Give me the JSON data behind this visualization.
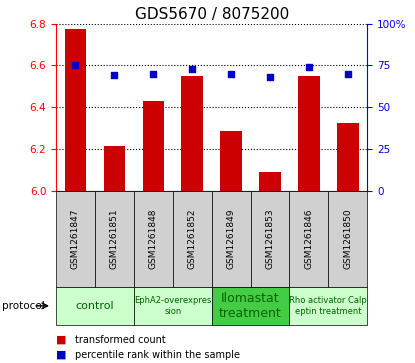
{
  "title": "GDS5670 / 8075200",
  "samples": [
    "GSM1261847",
    "GSM1261851",
    "GSM1261848",
    "GSM1261852",
    "GSM1261849",
    "GSM1261853",
    "GSM1261846",
    "GSM1261850"
  ],
  "bar_values": [
    6.775,
    6.215,
    6.43,
    6.55,
    6.285,
    6.09,
    6.55,
    6.325
  ],
  "percentile_values": [
    75,
    69,
    70,
    73,
    70,
    68,
    74,
    70
  ],
  "ylim_left": [
    6.0,
    6.8
  ],
  "ylim_right": [
    0,
    100
  ],
  "yticks_left": [
    6.0,
    6.2,
    6.4,
    6.6,
    6.8
  ],
  "yticks_right": [
    0,
    25,
    50,
    75,
    100
  ],
  "bar_color": "#cc0000",
  "dot_color": "#0000cc",
  "protocols": [
    {
      "label": "control",
      "span": [
        0,
        2
      ],
      "color": "#ccffcc",
      "text_size": 8
    },
    {
      "label": "EphA2-overexpres\nsion",
      "span": [
        2,
        4
      ],
      "color": "#ccffcc",
      "text_size": 6
    },
    {
      "label": "Ilomastat\ntreatment",
      "span": [
        4,
        6
      ],
      "color": "#44cc44",
      "text_size": 9
    },
    {
      "label": "Rho activator Calp\neptin treatment",
      "span": [
        6,
        8
      ],
      "color": "#ccffcc",
      "text_size": 6
    }
  ],
  "legend_bar_label": "transformed count",
  "legend_dot_label": "percentile rank within the sample",
  "protocol_label": "protocol",
  "title_fontsize": 11,
  "tick_fontsize": 7.5,
  "sample_bg": "#d0d0d0",
  "right_tick_labels": [
    "0",
    "25",
    "50",
    "75",
    "100%"
  ]
}
